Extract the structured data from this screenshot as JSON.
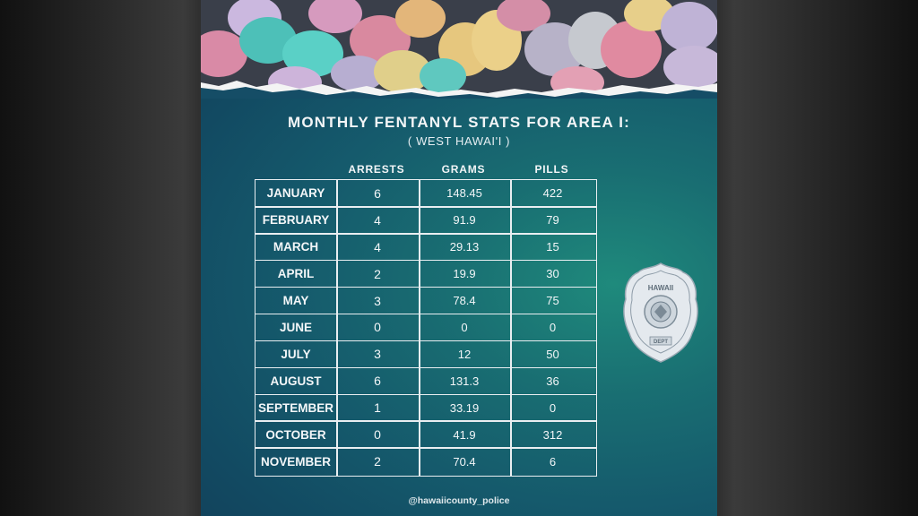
{
  "title": "MONTHLY FENTANYL STATS FOR AREA I:",
  "subtitle": "( WEST HAWAI'I )",
  "columns": {
    "arrests": "ARRESTS",
    "grams": "GRAMS",
    "pills": "PILLS"
  },
  "rows": [
    {
      "month": "JANUARY",
      "arrests": "6",
      "grams": "148.45",
      "pills": "422"
    },
    {
      "month": "FEBRUARY",
      "arrests": "4",
      "grams": "91.9",
      "pills": "79"
    },
    {
      "month": "MARCH",
      "arrests": "4",
      "grams": "29.13",
      "pills": "15"
    },
    {
      "month": "APRIL",
      "arrests": "2",
      "grams": "19.9",
      "pills": "30"
    },
    {
      "month": "MAY",
      "arrests": "3",
      "grams": "78.4",
      "pills": "75"
    },
    {
      "month": "JUNE",
      "arrests": "0",
      "grams": "0",
      "pills": "0"
    },
    {
      "month": "JULY",
      "arrests": "3",
      "grams": "12",
      "pills": "50"
    },
    {
      "month": "AUGUST",
      "arrests": "6",
      "grams": "131.3",
      "pills": "36"
    },
    {
      "month": "SEPTEMBER",
      "arrests": "1",
      "grams": "33.19",
      "pills": "0"
    },
    {
      "month": "OCTOBER",
      "arrests": "0",
      "grams": "41.9",
      "pills": "312"
    },
    {
      "month": "NOVEMBER",
      "arrests": "2",
      "grams": "70.4",
      "pills": "6"
    }
  ],
  "badge": {
    "top_text": "HAWAII",
    "bottom_text": "DEPT"
  },
  "handle": "@hawaiicounty_police",
  "colors": {
    "card_dark": "#113f59",
    "card_glow": "#1f8a7c",
    "text": "#f3f6f8"
  }
}
